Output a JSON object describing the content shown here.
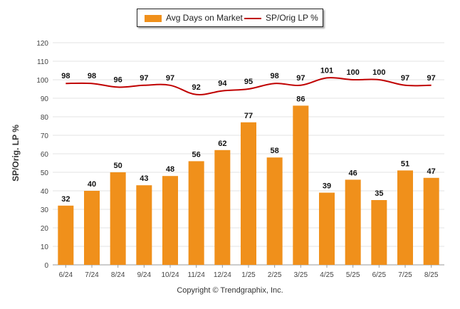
{
  "chart_data": {
    "type": "bar",
    "categories": [
      "6/24",
      "7/24",
      "8/24",
      "9/24",
      "10/24",
      "11/24",
      "12/24",
      "1/25",
      "2/25",
      "3/25",
      "4/25",
      "5/25",
      "6/25",
      "7/25",
      "8/25"
    ],
    "series": [
      {
        "name": "Avg Days on Market",
        "type": "bar",
        "color": "#f0901b",
        "values": [
          32,
          40,
          50,
          43,
          48,
          56,
          62,
          77,
          58,
          86,
          39,
          46,
          35,
          51,
          47
        ]
      },
      {
        "name": "SP/Orig LP %",
        "type": "line",
        "color": "#c00000",
        "values": [
          98,
          98,
          96,
          97,
          97,
          92,
          94,
          95,
          98,
          97,
          101,
          100,
          100,
          97,
          97
        ]
      }
    ],
    "ylabel": "SP/Orig. LP %",
    "ylim": [
      0,
      120
    ],
    "yticks": [
      0,
      10,
      20,
      30,
      40,
      50,
      60,
      70,
      80,
      90,
      100,
      110,
      120
    ],
    "grid": true,
    "legend_position": "top-center"
  },
  "footer": {
    "copyright": "Copyright © Trendgraphix, Inc."
  }
}
